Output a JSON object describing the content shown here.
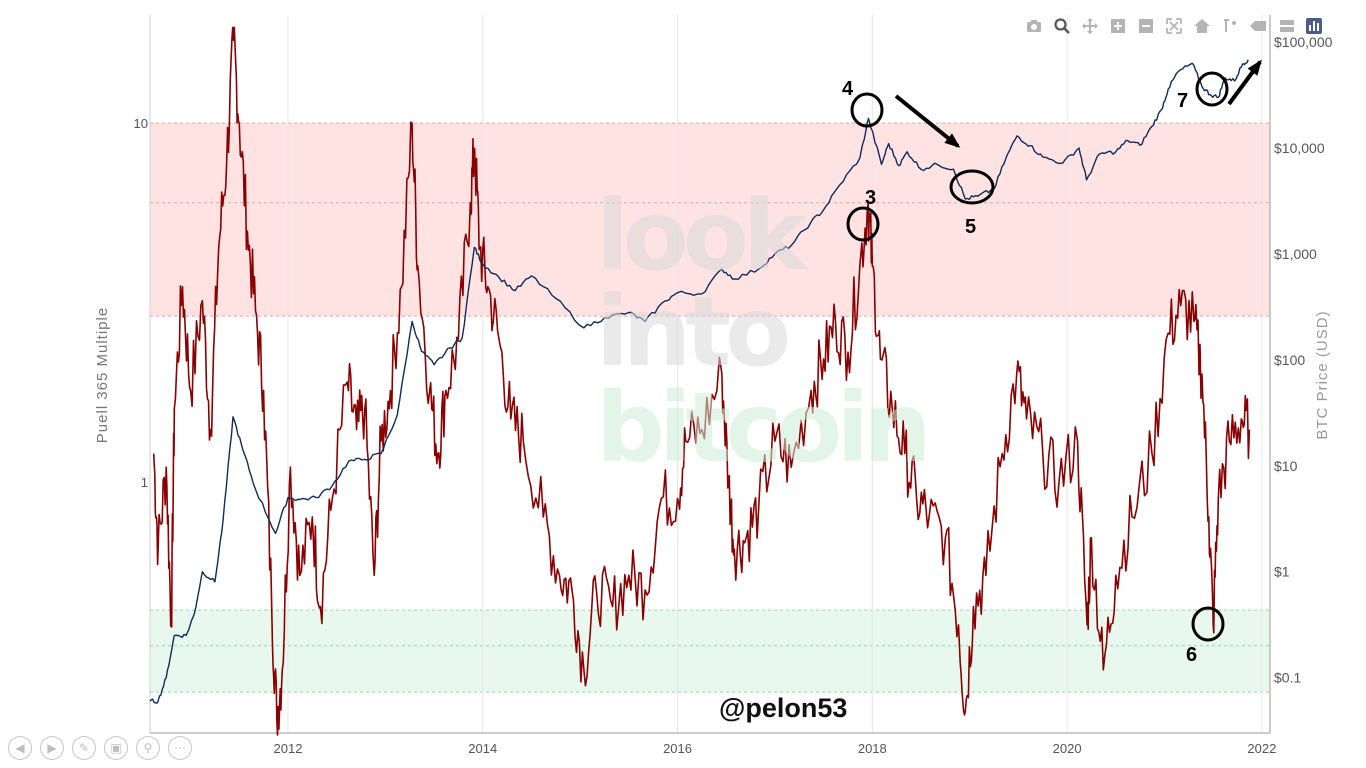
{
  "modebar": {
    "icons": [
      "camera-icon",
      "zoom-icon",
      "pan-icon",
      "zoom-in-icon",
      "zoom-out-icon",
      "autoscale-icon",
      "home-icon",
      "spike-lines-icon",
      "hover-closest-icon",
      "hover-compare-icon",
      "plotly-logo-icon"
    ]
  },
  "slide_nav": {
    "icons": [
      "previous-icon",
      "next-icon",
      "pen-icon",
      "slides-icon",
      "zoom-icon",
      "more-icon"
    ]
  },
  "watermark": {
    "line1": "look",
    "line2": "into",
    "line3": "bitcoin"
  },
  "handle": "@pelon53",
  "annotations": [
    {
      "label": "3"
    },
    {
      "label": "4"
    },
    {
      "label": "5"
    },
    {
      "label": "6"
    },
    {
      "label": "7"
    }
  ],
  "chart_data": {
    "type": "line",
    "title": "",
    "xlabel": "",
    "ylabel_left": "Puell 365 Multiple",
    "ylabel_right": "BTC Price (USD)",
    "x_range": [
      "2010-08",
      "2022-02"
    ],
    "x_ticks": [
      "2012",
      "2014",
      "2016",
      "2018",
      "2020",
      "2022"
    ],
    "y_left_scale": "log",
    "y_left_range": [
      0.2,
      20
    ],
    "y_left_ticks": [
      {
        "value": 1,
        "label": "1"
      },
      {
        "value": 10,
        "label": "10"
      }
    ],
    "y_right_scale": "log",
    "y_right_range": [
      0.03,
      180000
    ],
    "y_right_ticks": [
      {
        "value": 0.1,
        "label": "$0.1"
      },
      {
        "value": 1,
        "label": "$1"
      },
      {
        "value": 10,
        "label": "$10"
      },
      {
        "value": 100,
        "label": "$100"
      },
      {
        "value": 1000,
        "label": "$1,000"
      },
      {
        "value": 10000,
        "label": "$10,000"
      },
      {
        "value": 100000,
        "label": "$100,000"
      }
    ],
    "bands": [
      {
        "name": "red",
        "from": 2.9,
        "to": 10.0,
        "lines": [
          2.9,
          6.0,
          10.0
        ],
        "color": "#ffe3e3"
      },
      {
        "name": "green",
        "from": 0.26,
        "to": 0.44,
        "lines": [
          0.26,
          0.35,
          0.44
        ],
        "color": "#e8f8ee"
      }
    ],
    "grid": {
      "vertical": true,
      "horizontal": false
    },
    "series": [
      {
        "axis": "left",
        "color": "#8b0000",
        "points": [
          [
            "2010-08-15",
            1.2
          ],
          [
            "2010-09-01",
            0.65
          ],
          [
            "2010-10-01",
            1.1
          ],
          [
            "2010-10-20",
            0.4
          ],
          [
            "2010-11-01",
            1.6
          ],
          [
            "2010-12-01",
            3.5
          ],
          [
            "2011-01-01",
            1.8
          ],
          [
            "2011-02-15",
            3.2
          ],
          [
            "2011-03-15",
            1.4
          ],
          [
            "2011-04-15",
            4.5
          ],
          [
            "2011-05-15",
            8.0
          ],
          [
            "2011-06-10",
            17.0
          ],
          [
            "2011-07-01",
            10.0
          ],
          [
            "2011-08-01",
            5.0
          ],
          [
            "2011-09-01",
            3.0
          ],
          [
            "2011-10-01",
            1.8
          ],
          [
            "2011-11-01",
            0.45
          ],
          [
            "2011-11-20",
            0.22
          ],
          [
            "2011-12-10",
            0.3
          ],
          [
            "2012-01-10",
            1.1
          ],
          [
            "2012-02-15",
            0.55
          ],
          [
            "2012-04-01",
            0.8
          ],
          [
            "2012-05-01",
            0.45
          ],
          [
            "2012-06-15",
            0.9
          ],
          [
            "2012-08-10",
            1.9
          ],
          [
            "2012-09-15",
            1.4
          ],
          [
            "2012-10-15",
            1.6
          ],
          [
            "2012-11-20",
            0.55
          ],
          [
            "2012-12-15",
            1.3
          ],
          [
            "2013-01-20",
            1.8
          ],
          [
            "2013-03-01",
            3.5
          ],
          [
            "2013-04-10",
            10.0
          ],
          [
            "2013-05-01",
            4.0
          ],
          [
            "2013-06-15",
            1.8
          ],
          [
            "2013-07-15",
            1.2
          ],
          [
            "2013-08-15",
            1.8
          ],
          [
            "2013-10-01",
            2.5
          ],
          [
            "2013-11-15",
            6.0
          ],
          [
            "2013-12-01",
            8.5
          ],
          [
            "2013-12-20",
            4.5
          ],
          [
            "2014-01-20",
            3.5
          ],
          [
            "2014-03-01",
            2.5
          ],
          [
            "2014-04-15",
            1.5
          ],
          [
            "2014-06-01",
            1.3
          ],
          [
            "2014-08-15",
            0.8
          ],
          [
            "2014-10-15",
            0.55
          ],
          [
            "2014-12-01",
            0.5
          ],
          [
            "2015-01-15",
            0.3
          ],
          [
            "2015-03-01",
            0.5
          ],
          [
            "2015-05-01",
            0.45
          ],
          [
            "2015-07-01",
            0.55
          ],
          [
            "2015-09-01",
            0.5
          ],
          [
            "2015-11-01",
            0.9
          ],
          [
            "2016-01-01",
            0.9
          ],
          [
            "2016-02-01",
            1.3
          ],
          [
            "2016-04-01",
            1.4
          ],
          [
            "2016-06-15",
            2.0
          ],
          [
            "2016-07-10",
            1.0
          ],
          [
            "2016-08-01",
            0.65
          ],
          [
            "2016-09-15",
            0.7
          ],
          [
            "2016-11-01",
            0.85
          ],
          [
            "2017-01-01",
            1.3
          ],
          [
            "2017-03-01",
            1.1
          ],
          [
            "2017-05-15",
            1.8
          ],
          [
            "2017-07-01",
            2.2
          ],
          [
            "2017-08-15",
            2.8
          ],
          [
            "2017-10-01",
            2.3
          ],
          [
            "2017-11-15",
            4.0
          ],
          [
            "2017-12-16",
            6.0
          ],
          [
            "2018-01-01",
            4.0
          ],
          [
            "2018-02-01",
            2.2
          ],
          [
            "2018-03-15",
            1.6
          ],
          [
            "2018-05-01",
            1.2
          ],
          [
            "2018-06-15",
            0.9
          ],
          [
            "2018-08-01",
            0.8
          ],
          [
            "2018-10-01",
            0.7
          ],
          [
            "2018-11-20",
            0.4
          ],
          [
            "2018-12-15",
            0.23
          ],
          [
            "2019-01-15",
            0.45
          ],
          [
            "2019-03-01",
            0.55
          ],
          [
            "2019-05-01",
            1.2
          ],
          [
            "2019-06-25",
            2.0
          ],
          [
            "2019-08-01",
            1.5
          ],
          [
            "2019-10-01",
            1.2
          ],
          [
            "2019-12-01",
            1.0
          ],
          [
            "2020-02-10",
            1.3
          ],
          [
            "2020-03-15",
            0.4
          ],
          [
            "2020-04-01",
            0.7
          ],
          [
            "2020-05-15",
            0.3
          ],
          [
            "2020-07-01",
            0.55
          ],
          [
            "2020-09-01",
            0.8
          ],
          [
            "2020-11-15",
            1.2
          ],
          [
            "2021-01-15",
            2.6
          ],
          [
            "2021-03-01",
            3.1
          ],
          [
            "2021-04-20",
            2.8
          ],
          [
            "2021-05-20",
            2.0
          ],
          [
            "2021-06-15",
            0.8
          ],
          [
            "2021-07-01",
            0.4
          ],
          [
            "2021-07-20",
            0.9
          ],
          [
            "2021-09-01",
            1.3
          ],
          [
            "2021-10-15",
            1.5
          ],
          [
            "2021-11-15",
            1.4
          ]
        ]
      },
      {
        "axis": "right",
        "color": "#0d2c5a",
        "points": [
          [
            "2010-08-01",
            0.06
          ],
          [
            "2010-09-01",
            0.06
          ],
          [
            "2010-10-01",
            0.1
          ],
          [
            "2010-11-01",
            0.25
          ],
          [
            "2010-12-15",
            0.25
          ],
          [
            "2011-01-15",
            0.4
          ],
          [
            "2011-02-15",
            1.0
          ],
          [
            "2011-04-01",
            0.8
          ],
          [
            "2011-05-01",
            3.0
          ],
          [
            "2011-06-08",
            29.0
          ],
          [
            "2011-07-15",
            14.0
          ],
          [
            "2011-09-01",
            6.0
          ],
          [
            "2011-11-15",
            2.3
          ],
          [
            "2012-01-01",
            5.0
          ],
          [
            "2012-02-15",
            4.8
          ],
          [
            "2012-04-15",
            5.0
          ],
          [
            "2012-06-15",
            6.5
          ],
          [
            "2012-08-15",
            11.0
          ],
          [
            "2012-10-15",
            11.5
          ],
          [
            "2012-12-15",
            13.0
          ],
          [
            "2013-02-15",
            30.0
          ],
          [
            "2013-04-10",
            230.0
          ],
          [
            "2013-05-15",
            120.0
          ],
          [
            "2013-07-01",
            90.0
          ],
          [
            "2013-09-01",
            130.0
          ],
          [
            "2013-10-15",
            160.0
          ],
          [
            "2013-11-30",
            1150.0
          ],
          [
            "2014-01-01",
            800.0
          ],
          [
            "2014-03-01",
            600.0
          ],
          [
            "2014-05-01",
            450.0
          ],
          [
            "2014-07-01",
            620.0
          ],
          [
            "2014-10-01",
            380.0
          ],
          [
            "2015-01-15",
            200.0
          ],
          [
            "2015-04-01",
            250.0
          ],
          [
            "2015-07-01",
            280.0
          ],
          [
            "2015-09-01",
            230.0
          ],
          [
            "2015-11-15",
            360.0
          ],
          [
            "2016-01-01",
            430.0
          ],
          [
            "2016-04-01",
            420.0
          ],
          [
            "2016-06-15",
            720.0
          ],
          [
            "2016-08-01",
            580.0
          ],
          [
            "2016-11-01",
            720.0
          ],
          [
            "2017-01-01",
            1000.0
          ],
          [
            "2017-03-01",
            1200.0
          ],
          [
            "2017-05-15",
            2000.0
          ],
          [
            "2017-07-01",
            2600.0
          ],
          [
            "2017-09-01",
            4500.0
          ],
          [
            "2017-11-15",
            8000.0
          ],
          [
            "2017-12-17",
            19000.0
          ],
          [
            "2018-02-05",
            7000.0
          ],
          [
            "2018-03-01",
            11000.0
          ],
          [
            "2018-04-10",
            6800.0
          ],
          [
            "2018-05-10",
            9200.0
          ],
          [
            "2018-07-01",
            6300.0
          ],
          [
            "2018-09-01",
            7000.0
          ],
          [
            "2018-11-01",
            6300.0
          ],
          [
            "2018-12-15",
            3300.0
          ],
          [
            "2019-02-01",
            3500.0
          ],
          [
            "2019-04-01",
            4100.0
          ],
          [
            "2019-05-15",
            8000.0
          ],
          [
            "2019-06-26",
            13000.0
          ],
          [
            "2019-08-15",
            10500.0
          ],
          [
            "2019-10-01",
            8200.0
          ],
          [
            "2019-12-15",
            7200.0
          ],
          [
            "2020-02-15",
            10000.0
          ],
          [
            "2020-03-13",
            5000.0
          ],
          [
            "2020-05-01",
            8800.0
          ],
          [
            "2020-07-01",
            9200.0
          ],
          [
            "2020-08-15",
            11800.0
          ],
          [
            "2020-10-01",
            10600.0
          ],
          [
            "2020-11-15",
            16000.0
          ],
          [
            "2020-12-20",
            23000.0
          ],
          [
            "2021-01-15",
            36000.0
          ],
          [
            "2021-02-20",
            52000.0
          ],
          [
            "2021-04-14",
            63000.0
          ],
          [
            "2021-05-20",
            38000.0
          ],
          [
            "2021-06-20",
            32000.0
          ],
          [
            "2021-07-20",
            30000.0
          ],
          [
            "2021-08-15",
            46000.0
          ],
          [
            "2021-09-20",
            43000.0
          ],
          [
            "2021-10-20",
            62000.0
          ],
          [
            "2021-11-10",
            68000.0
          ]
        ]
      }
    ]
  }
}
